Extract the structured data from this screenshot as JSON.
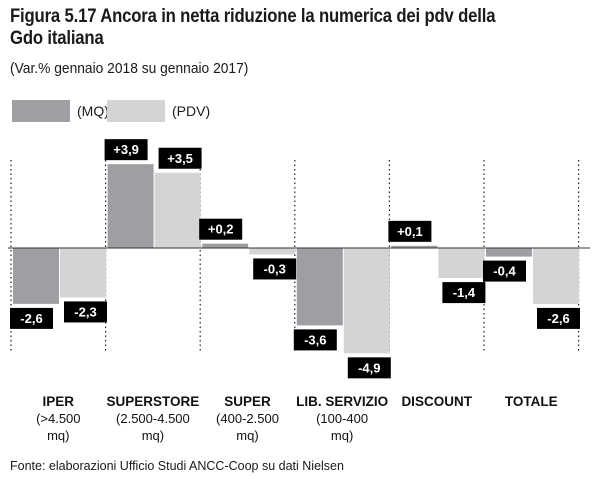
{
  "chart_data": {
    "type": "bar",
    "title": "Figura 5.17 Ancora in netta riduzione la numerica dei pdv della Gdo italiana",
    "subtitle": "(Var.% gennaio 2018 su gennaio 2017)",
    "categories": [
      {
        "name": "IPER",
        "detail": [
          "(>4.500",
          "mq)"
        ]
      },
      {
        "name": "SUPERSTORE",
        "detail": [
          "(2.500-4.500",
          "mq)"
        ]
      },
      {
        "name": "SUPER",
        "detail": [
          "(400-2.500",
          "mq)"
        ]
      },
      {
        "name": "LIB. SERVIZIO",
        "detail": [
          "(100-400",
          "mq)"
        ]
      },
      {
        "name": "DISCOUNT",
        "detail": []
      },
      {
        "name": "TOTALE",
        "detail": []
      }
    ],
    "series": [
      {
        "name": "(MQ)",
        "color": "#9d9fa2",
        "values": [
          -2.6,
          3.9,
          0.2,
          -3.6,
          0.1,
          -0.4
        ],
        "labels": [
          "-2,6",
          "+3,9",
          "+0,2",
          "-3,6",
          "+0,1",
          "-0,4"
        ]
      },
      {
        "name": "(PDV)",
        "color": "#d3d4d6",
        "values": [
          -2.3,
          3.5,
          -0.3,
          -4.9,
          -1.4,
          -2.6
        ],
        "labels": [
          "-2,3",
          "+3,5",
          "-0,3",
          "-4,9",
          "-1,4",
          "-2,6"
        ]
      }
    ],
    "ylim": [
      -6,
      4.5
    ],
    "legend": "top-left",
    "grid": false,
    "separators": "dotted"
  },
  "source": "Fonte: elaborazioni Ufficio Studi ANCC-Coop su dati Nielsen"
}
